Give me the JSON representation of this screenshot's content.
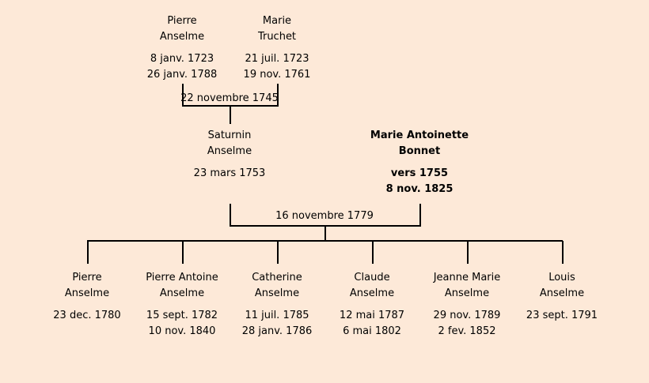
{
  "grandparents": {
    "father": {
      "first_name": "Pierre",
      "last_name": "Anselme",
      "birth": "8 janv. 1723",
      "death": "26 janv. 1788"
    },
    "mother": {
      "first_name": "Marie",
      "last_name": "Truchet",
      "birth": "21 juil. 1723",
      "death": "19 nov. 1761"
    },
    "marriage_date": "22 novembre 1745"
  },
  "parents": {
    "father": {
      "first_name": "Saturnin",
      "last_name": "Anselme",
      "birth": "23 mars 1753"
    },
    "mother": {
      "first_name": "Marie Antoinette",
      "last_name": "Bonnet",
      "birth": "vers 1755",
      "death": "8 nov. 1825"
    },
    "marriage_date": "16 novembre 1779"
  },
  "children": [
    {
      "first_name": "Pierre",
      "last_name": "Anselme",
      "birth": "23 dec. 1780"
    },
    {
      "first_name": "Pierre Antoine",
      "last_name": "Anselme",
      "birth": "15 sept. 1782",
      "death": "10 nov. 1840"
    },
    {
      "first_name": "Catherine",
      "last_name": "Anselme",
      "birth": "11 juil. 1785",
      "death": "28 janv. 1786"
    },
    {
      "first_name": "Claude",
      "last_name": "Anselme",
      "birth": "12 mai 1787",
      "death": "6 mai 1802"
    },
    {
      "first_name": "Jeanne Marie",
      "last_name": "Anselme",
      "birth": "29 nov. 1789",
      "death": "2 fev. 1852"
    },
    {
      "first_name": "Louis",
      "last_name": "Anselme",
      "birth": "23 sept. 1791"
    }
  ],
  "colors": {
    "background": "#fde9d8",
    "line": "#000000",
    "text": "#000000"
  }
}
